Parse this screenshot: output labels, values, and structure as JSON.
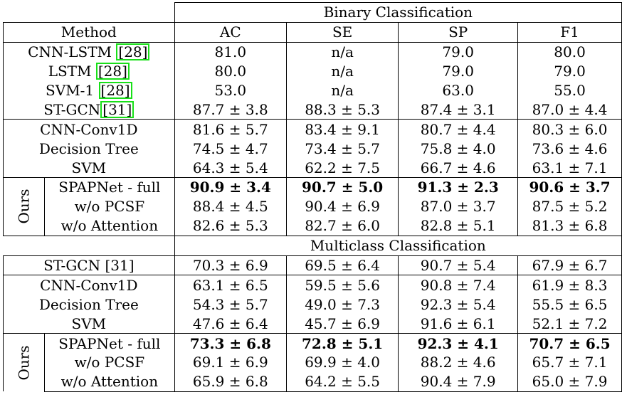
{
  "table": {
    "binary_header": "Binary Classification",
    "multiclass_header": "Multiclass Classification",
    "method_header": "Method",
    "metric_headers": [
      "AC",
      "SE",
      "SP",
      "F1"
    ],
    "ours_label": "Ours",
    "binary": {
      "baselines_cited": [
        {
          "method": "CNN-LSTM",
          "ref": "[28]",
          "ref_boxed": true,
          "values": [
            "81.0",
            "n/a",
            "79.0",
            "80.0"
          ]
        },
        {
          "method": "LSTM",
          "ref": "[28]",
          "ref_boxed": true,
          "values": [
            "80.0",
            "n/a",
            "79.0",
            "79.0"
          ]
        },
        {
          "method": "SVM-1",
          "ref": "[28]",
          "ref_boxed": true,
          "values": [
            "53.0",
            "n/a",
            "63.0",
            "55.0"
          ]
        },
        {
          "method": "ST-GCN",
          "ref": "[31]",
          "ref_boxed": true,
          "values": [
            "87.7 ± 3.8",
            "88.3 ± 5.3",
            "87.4 ± 3.1",
            "87.0 ± 4.4"
          ]
        }
      ],
      "baselines": [
        {
          "method": "CNN-Conv1D",
          "values": [
            "81.6 ± 5.7",
            "83.4 ± 9.1",
            "80.7 ± 4.4",
            "80.3 ± 6.0"
          ]
        },
        {
          "method": "Decision Tree",
          "values": [
            "74.5 ± 4.7",
            "73.4 ± 5.7",
            "75.8 ± 4.0",
            "73.6 ± 4.6"
          ]
        },
        {
          "method": "SVM",
          "values": [
            "64.3 ± 5.4",
            "62.2 ± 7.5",
            "66.7 ± 4.6",
            "63.1 ± 7.1"
          ]
        }
      ],
      "ours": [
        {
          "method": "SPAPNet - full",
          "bold": true,
          "values": [
            "90.9 ± 3.4",
            "90.7 ± 5.0",
            "91.3 ± 2.3",
            "90.6 ± 3.7"
          ]
        },
        {
          "method": "w/o PCSF",
          "values": [
            "88.4 ± 4.5",
            "90.4 ± 6.9",
            "87.0 ± 3.7",
            "87.5 ± 5.2"
          ]
        },
        {
          "method": "w/o Attention",
          "values": [
            "82.6 ± 5.3",
            "82.7 ± 6.0",
            "82.8 ± 5.1",
            "81.3 ± 6.8"
          ]
        }
      ]
    },
    "multiclass": {
      "baselines_cited": [
        {
          "method": "ST-GCN",
          "ref": "[31]",
          "ref_boxed": false,
          "values": [
            "70.3 ± 6.9",
            "69.5 ± 6.4",
            "90.7 ± 5.4",
            "67.9 ± 6.7"
          ]
        }
      ],
      "baselines": [
        {
          "method": "CNN-Conv1D",
          "values": [
            "63.1 ± 6.5",
            "59.5 ± 5.6",
            "90.8 ± 7.4",
            "61.9 ± 8.3"
          ]
        },
        {
          "method": "Decision Tree",
          "values": [
            "54.3 ± 5.7",
            "49.0 ± 7.3",
            "92.3 ± 5.4",
            "55.5 ± 6.5"
          ]
        },
        {
          "method": "SVM",
          "values": [
            "47.6 ± 6.4",
            "45.7 ± 6.9",
            "91.6 ± 6.1",
            "52.1 ± 7.2"
          ]
        }
      ],
      "ours": [
        {
          "method": "SPAPNet - full",
          "bold": true,
          "values": [
            "73.3 ± 6.8",
            "72.8 ± 5.1",
            "92.3 ± 4.1",
            "70.7 ± 6.5"
          ]
        },
        {
          "method": "w/o PCSF",
          "values": [
            "69.1 ± 6.9",
            "69.9 ± 4.0",
            "88.2 ± 4.6",
            "65.7 ± 7.1"
          ]
        },
        {
          "method": "w/o Attention",
          "values": [
            "65.9 ± 6.8",
            "64.2 ± 5.5",
            "90.4 ± 7.9",
            "65.0 ± 7.9"
          ]
        }
      ]
    }
  }
}
